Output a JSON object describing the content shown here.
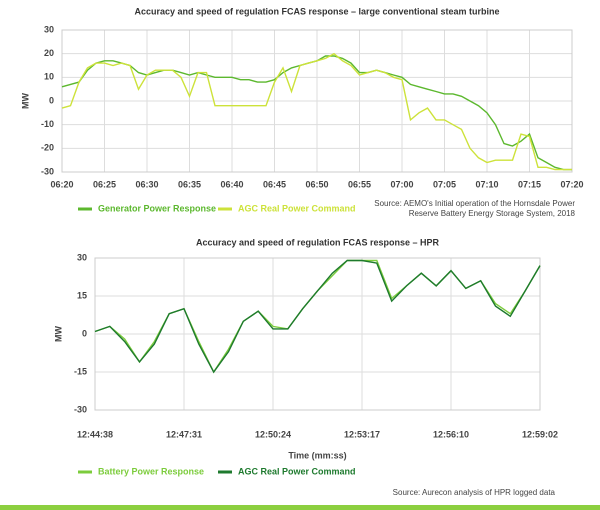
{
  "chart_data": [
    {
      "type": "line",
      "title": "Accuracy and speed of regulation FCAS response – large conventional steam turbine",
      "ylabel": "MW",
      "source": [
        "Source: AEMO's Initial operation of the Hornsdale Power",
        "Reserve Battery Energy Storage System, 2018"
      ],
      "categories": [
        "06:20",
        null,
        null,
        null,
        null,
        "06:25",
        null,
        null,
        null,
        null,
        "06:30",
        null,
        null,
        null,
        null,
        "06:35",
        null,
        null,
        null,
        null,
        "06:40",
        null,
        null,
        null,
        null,
        "06:45",
        null,
        null,
        null,
        null,
        "06:50",
        null,
        null,
        null,
        null,
        "06:55",
        null,
        null,
        null,
        null,
        "07:00",
        null,
        null,
        null,
        null,
        "07:05",
        null,
        null,
        null,
        null,
        "07:10",
        null,
        null,
        null,
        null,
        "07:15",
        null,
        null,
        null,
        null,
        "07:20"
      ],
      "series": [
        {
          "name": "Generator Power Response",
          "color": "#5cb82e",
          "values": [
            6,
            7,
            8,
            13,
            16,
            17,
            17,
            16,
            15,
            12,
            11,
            12,
            13,
            13,
            12,
            11,
            12,
            11,
            10,
            10,
            10,
            9,
            9,
            8,
            8,
            9,
            12,
            14,
            15,
            16,
            17,
            19,
            19,
            18,
            16,
            12,
            12,
            13,
            12,
            11,
            10,
            7,
            6,
            5,
            4,
            3,
            3,
            2,
            0,
            -2,
            -5,
            -10,
            -18,
            -19,
            -17,
            -14,
            -24,
            -26,
            -28,
            -29,
            -29
          ]
        },
        {
          "name": "AGC Real Power Command",
          "color": "#cde23a",
          "values": [
            -3,
            -2,
            8,
            14,
            16,
            16,
            15,
            16,
            15,
            5,
            11,
            13,
            13,
            13,
            10,
            2,
            12,
            12,
            -2,
            -2,
            -2,
            -2,
            -2,
            -2,
            -2,
            8,
            14,
            4,
            15,
            16,
            17,
            18,
            20,
            17,
            15,
            11,
            12,
            13,
            12,
            10,
            9,
            -8,
            -5,
            -3,
            -8,
            -8,
            -10,
            -12,
            -20,
            -24,
            -26,
            -25,
            -25,
            -25,
            -14,
            -15,
            -28,
            -28,
            -29,
            -29,
            -29
          ]
        }
      ],
      "ylim": [
        -30,
        30
      ],
      "yticks": [
        -30,
        -20,
        -10,
        0,
        10,
        20,
        30
      ],
      "grid": true
    },
    {
      "type": "line",
      "title": "Accuracy and speed of regulation FCAS response – HPR",
      "ylabel": "MW",
      "xlabel": "Time (mm:ss)",
      "source": [
        "Source: Aurecon analysis of HPR logged data"
      ],
      "categories": [
        "12:44:38",
        null,
        null,
        null,
        null,
        null,
        "12:47:31",
        null,
        null,
        null,
        null,
        null,
        "12:50:24",
        null,
        null,
        null,
        null,
        null,
        "12:53:17",
        null,
        null,
        null,
        null,
        null,
        "12:56:10",
        null,
        null,
        null,
        null,
        null,
        "12:59:02"
      ],
      "series": [
        {
          "name": "Battery Power Response",
          "color": "#7ccc3c",
          "values": [
            1,
            3,
            -2,
            -11,
            -3,
            8,
            10,
            -3,
            -15,
            -6,
            5,
            9,
            3,
            2,
            10,
            17,
            23,
            29,
            29,
            29,
            14,
            19,
            24,
            19,
            25,
            18,
            21,
            12,
            8,
            17,
            27
          ]
        },
        {
          "name": "AGC Real Power Command",
          "color": "#1e7a2e",
          "values": [
            1,
            3,
            -3,
            -11,
            -4,
            8,
            10,
            -4,
            -15,
            -7,
            5,
            9,
            2,
            2,
            10,
            17,
            24,
            29,
            29,
            28,
            13,
            19,
            24,
            19,
            25,
            18,
            21,
            11,
            7,
            17,
            27
          ]
        }
      ],
      "ylim": [
        -30,
        30
      ],
      "yticks": [
        -30,
        -15,
        0,
        15,
        30
      ],
      "grid": true
    }
  ]
}
